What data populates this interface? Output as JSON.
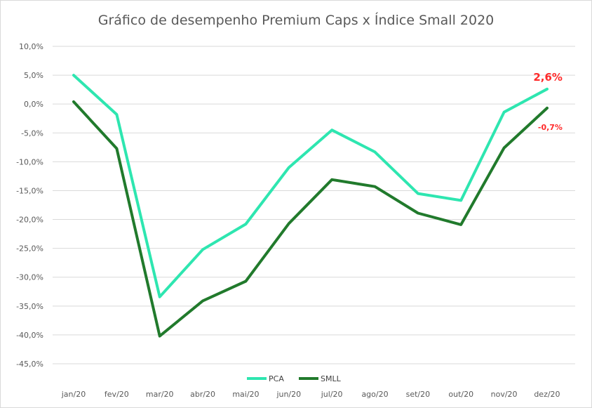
{
  "chart_data": {
    "type": "line",
    "title": "Gráfico de desempenho Premium Caps x Índice Small 2020",
    "categories": [
      "jan/20",
      "fev/20",
      "mar/20",
      "abr/20",
      "mai/20",
      "jun/20",
      "jul/20",
      "ago/20",
      "set/20",
      "out/20",
      "nov/20",
      "dez/20"
    ],
    "y_ticks": [
      "10,0%",
      "5,0%",
      "0,0%",
      "-5,0%",
      "-10,0%",
      "-15,0%",
      "-20,0%",
      "-25,0%",
      "-30,0%",
      "-35,0%",
      "-40,0%",
      "-45,0%"
    ],
    "y_tick_values": [
      10,
      5,
      0,
      -5,
      -10,
      -15,
      -20,
      -25,
      -30,
      -35,
      -40,
      -45
    ],
    "ylim": [
      -45,
      10
    ],
    "grid": true,
    "legend_position": "bottom",
    "series": [
      {
        "name": "PCA",
        "color": "#2ee6b0",
        "values": [
          5.0,
          -1.8,
          -33.4,
          -25.2,
          -20.8,
          -11.0,
          -4.5,
          -8.3,
          -15.5,
          -16.7,
          -1.4,
          2.6
        ],
        "end_label": "2,6%"
      },
      {
        "name": "SMLL",
        "color": "#217a2c",
        "values": [
          0.4,
          -7.7,
          -40.2,
          -34.1,
          -30.7,
          -20.7,
          -13.1,
          -14.3,
          -18.9,
          -20.9,
          -7.6,
          -0.7
        ],
        "end_label": "-0,7%"
      }
    ]
  }
}
